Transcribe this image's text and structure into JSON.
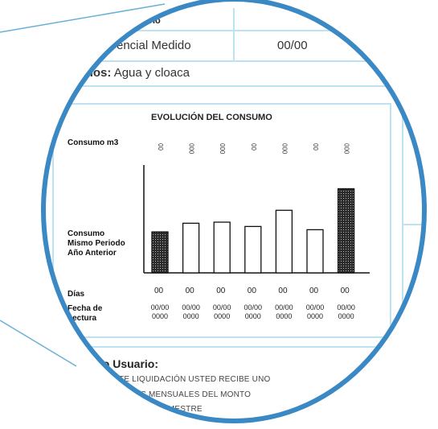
{
  "header": {
    "col_usuario": "usuario",
    "tariff": "encial  Medido",
    "date_value": "00/00",
    "services_label": "rvicios:",
    "services_value": "Agua y cloaca"
  },
  "chart_data": {
    "type": "bar",
    "title": "EVOLUCIÓN DEL CONSUMO",
    "ylabel": "Consumo m3",
    "legend_label": "Consumo Mismo Periodo Año Anterior",
    "days_label": "Días",
    "date_label": "Fecha de Lectura",
    "value_labels": [
      "00",
      "000",
      "000",
      "00",
      "000",
      "00",
      "000"
    ],
    "values": [
      38,
      46,
      47,
      43,
      58,
      40,
      78
    ],
    "highlight": [
      true,
      false,
      false,
      false,
      false,
      false,
      true
    ],
    "days": [
      "00",
      "00",
      "00",
      "00",
      "00",
      "00",
      "00"
    ],
    "dates_top": [
      "00/00",
      "00/00",
      "00/00",
      "00/00",
      "00/00",
      "00/00",
      "00/00"
    ],
    "dates_bottom": [
      "0000",
      "0000",
      "0000",
      "0000",
      "0000",
      "0000",
      "0000"
    ],
    "ylim": [
      0,
      100
    ]
  },
  "footer": {
    "greeting": "mado Usuario:",
    "line1": "ESENTE LIQUIDACIÓN USTED RECIBE UNO",
    "line2": "TRAMOS MENSUALES DEL MONTO",
    "line3": "ÓN DEL BIMESTRE"
  },
  "colors": {
    "ring": "#3a88c4",
    "leader": "#6ab0d6",
    "panel_border": "#bde3f3",
    "bar_fill": "#2b2b2b"
  }
}
